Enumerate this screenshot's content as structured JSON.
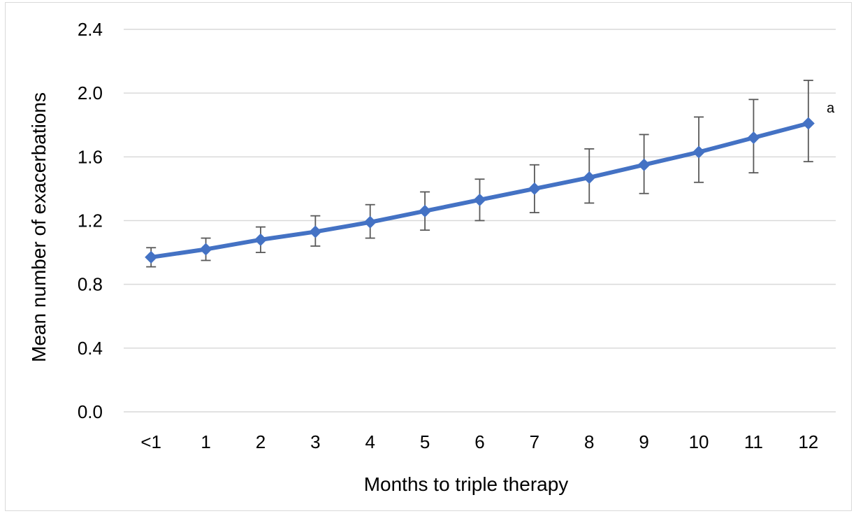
{
  "chart_data": {
    "type": "line",
    "title": "",
    "xlabel": "Months to triple therapy",
    "ylabel": "Mean number of exacerbations",
    "categories": [
      "<1",
      "1",
      "2",
      "3",
      "4",
      "5",
      "6",
      "7",
      "8",
      "9",
      "10",
      "11",
      "12"
    ],
    "series": [
      {
        "values": [
          0.97,
          1.02,
          1.08,
          1.13,
          1.19,
          1.26,
          1.33,
          1.4,
          1.47,
          1.55,
          1.63,
          1.72,
          1.81
        ],
        "error_lower": [
          0.91,
          0.95,
          1.0,
          1.04,
          1.09,
          1.14,
          1.2,
          1.25,
          1.31,
          1.37,
          1.44,
          1.5,
          1.57
        ],
        "error_upper": [
          1.03,
          1.09,
          1.16,
          1.23,
          1.3,
          1.38,
          1.46,
          1.55,
          1.65,
          1.74,
          1.85,
          1.96,
          2.08
        ],
        "color": "#4472c4",
        "marker": "diamond"
      }
    ],
    "ylim": [
      0.0,
      2.4
    ],
    "yticks": [
      "0.0",
      "0.4",
      "0.8",
      "1.2",
      "1.6",
      "2.0",
      "2.4"
    ],
    "grid": true,
    "annotation": "a"
  }
}
